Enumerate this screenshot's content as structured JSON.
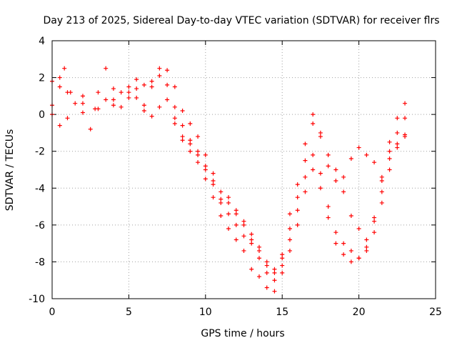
{
  "chart_data": {
    "type": "scatter",
    "title": "Day 213 of 2025, Sidereal Day-to-day VTEC variation (SDTVAR) for receiver flrs",
    "xlabel": "GPS time / hours",
    "ylabel": "SDTVAR / TECUs",
    "xlim": [
      0,
      25
    ],
    "ylim": [
      -10,
      4
    ],
    "xticks": [
      "0",
      "5",
      "10",
      "15",
      "20",
      "25"
    ],
    "yticks": [
      "4",
      "2",
      "0",
      "-2",
      "-4",
      "-6",
      "-8",
      "-10"
    ],
    "grid": true,
    "marker": "+",
    "color": "#ff0000",
    "series": [
      {
        "x": [
          0,
          0.5,
          0.8,
          1.2,
          2,
          2.8,
          3.5,
          4,
          4.5,
          5,
          5.5,
          6,
          6.5,
          7,
          7.5,
          8,
          8.5,
          9,
          9.5,
          10,
          10.5,
          11,
          11.5,
          12,
          12.5,
          13,
          13.5,
          14,
          14.5,
          15,
          15.5,
          16,
          16.5,
          17,
          17.5,
          18,
          18.5,
          19,
          19.5,
          20,
          20.5,
          21,
          21.5,
          22,
          22.5,
          23
        ],
        "y": [
          0.5,
          1.5,
          2.5,
          1.2,
          0.6,
          0.3,
          0.8,
          0.5,
          1.2,
          0.9,
          1.4,
          1.6,
          1.8,
          2.5,
          2.4,
          1.5,
          0.2,
          -0.5,
          -1.2,
          -2.2,
          -3.2,
          -4.8,
          -4.5,
          -5.2,
          -5.8,
          -6.5,
          -7.2,
          -8.2,
          -8.6,
          -7.8,
          -6.2,
          -4.5,
          -2.5,
          -0.5,
          -1.2,
          -2.8,
          -3.6,
          -4.2,
          -5.5,
          -6.2,
          -6.8,
          -5.8,
          -4.2,
          -2.4,
          -1.6,
          -1.1
        ]
      },
      {
        "x": [
          0,
          0.5,
          1,
          2,
          3,
          3.5,
          4,
          5,
          5.5,
          6,
          6.5,
          7,
          7.5,
          8,
          8.5,
          9,
          9.5,
          10,
          10.5,
          11,
          11.5,
          12,
          12.5,
          13,
          13.5,
          14,
          14.5,
          15,
          15.5,
          16,
          16.5,
          17,
          17.5,
          18,
          18.5,
          19,
          19.5,
          20,
          20.5,
          21,
          21.5,
          22,
          22.5,
          23
        ],
        "y": [
          1.8,
          2.0,
          1.2,
          1.0,
          1.2,
          2.5,
          1.4,
          1.2,
          1.9,
          0.5,
          1.5,
          2.1,
          1.6,
          0.4,
          -0.6,
          -1.4,
          -2.0,
          -2.8,
          -3.6,
          -4.2,
          -4.8,
          -5.4,
          -6.0,
          -6.8,
          -7.4,
          -8.0,
          -8.4,
          -7.6,
          -5.4,
          -3.8,
          -1.6,
          0.0,
          -1.0,
          -2.2,
          -3.0,
          -3.4,
          -2.4,
          -1.8,
          -2.2,
          -2.6,
          -3.4,
          -1.5,
          -0.2,
          0.6
        ]
      },
      {
        "x": [
          0,
          0.5,
          1,
          1.5,
          2,
          2.5,
          3,
          4,
          4.5,
          5,
          5.5,
          6,
          6.5,
          7,
          7.5,
          8,
          8.5,
          9,
          9.5,
          10,
          10.5,
          11,
          11.5,
          12,
          12.5,
          13,
          13.5,
          14,
          14.5,
          15,
          15.5,
          16,
          16.5,
          17,
          17.5,
          18,
          18.5,
          19,
          19.5,
          20,
          20.5,
          21,
          21.5,
          22,
          22.5,
          23
        ],
        "y": [
          0.0,
          -0.6,
          -0.2,
          0.6,
          0.1,
          -0.8,
          0.3,
          0.8,
          0.4,
          1.5,
          0.9,
          0.2,
          -0.1,
          0.4,
          0.8,
          -0.5,
          -1.4,
          -2.0,
          -2.6,
          -3.5,
          -4.5,
          -5.5,
          -6.2,
          -6.8,
          -7.4,
          -8.4,
          -8.8,
          -9.4,
          -9.6,
          -8.6,
          -6.8,
          -5.2,
          -3.4,
          -2.2,
          -3.2,
          -5.0,
          -6.4,
          -7.0,
          -7.4,
          -7.8,
          -7.2,
          -5.6,
          -3.6,
          -2.0,
          -1.0,
          -0.2
        ]
      },
      {
        "x": [
          8,
          8.5,
          9,
          9.5,
          10,
          10.5,
          11,
          11.5,
          12,
          12.5,
          13,
          13.5,
          14,
          14.5,
          15,
          15.5,
          16,
          16.5,
          17,
          17.5,
          18,
          18.5,
          19,
          19.5,
          20,
          20.5,
          21,
          21.5,
          22,
          22.5,
          23
        ],
        "y": [
          -0.2,
          -1.2,
          -1.6,
          -2.2,
          -3.0,
          -3.8,
          -4.6,
          -5.4,
          -6.0,
          -6.6,
          -7.0,
          -7.8,
          -8.6,
          -9.0,
          -8.2,
          -7.4,
          -6.0,
          -4.2,
          -3.0,
          -4.0,
          -5.6,
          -7.0,
          -7.6,
          -8.0,
          -7.8,
          -7.4,
          -6.4,
          -4.8,
          -3.0,
          -1.8,
          -1.2
        ]
      }
    ]
  }
}
